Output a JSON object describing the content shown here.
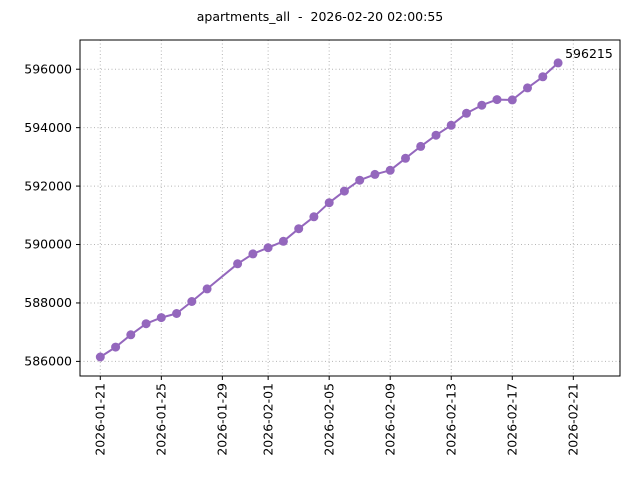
{
  "figure": {
    "title": "apartments_all  -  2026-02-20 02:00:55",
    "background_color": "#ffffff"
  },
  "chart_data": {
    "type": "line",
    "title": "apartments_all  -  2026-02-20 02:00:55",
    "xlabel": "",
    "ylabel": "",
    "grid": "dotted",
    "grid_color": "#b5b5b5",
    "legend": "none",
    "series": [
      {
        "name": "apartments_all",
        "color": "#9467bd",
        "marker": "circle",
        "x": [
          "2026-01-21",
          "2026-01-22",
          "2026-01-23",
          "2026-01-24",
          "2026-01-25",
          "2026-01-26",
          "2026-01-27",
          "2026-01-28",
          "2026-01-30",
          "2026-01-31",
          "2026-02-01",
          "2026-02-02",
          "2026-02-03",
          "2026-02-04",
          "2026-02-05",
          "2026-02-06",
          "2026-02-07",
          "2026-02-08",
          "2026-02-09",
          "2026-02-10",
          "2026-02-11",
          "2026-02-12",
          "2026-02-13",
          "2026-02-14",
          "2026-02-15",
          "2026-02-16",
          "2026-02-17",
          "2026-02-18",
          "2026-02-19",
          "2026-02-20"
        ],
        "values": [
          586150,
          586490,
          586910,
          587290,
          587500,
          587640,
          588050,
          588480,
          589340,
          589680,
          589890,
          590110,
          590540,
          590950,
          591430,
          591830,
          592200,
          592400,
          592540,
          592950,
          593360,
          593740,
          594080,
          594490,
          594770,
          594960,
          594950,
          595360,
          595740,
          596215
        ]
      }
    ],
    "annotation": {
      "text": "596215",
      "attached_to": "last-point",
      "color": "#000000"
    },
    "x_tick_labels": [
      "2026-01-21",
      "2026-01-25",
      "2026-01-29",
      "2026-02-01",
      "2026-02-05",
      "2026-02-09",
      "2026-02-13",
      "2026-02-17",
      "2026-02-21"
    ],
    "y_tick_labels": [
      "586000",
      "588000",
      "590000",
      "592000",
      "594000",
      "596000"
    ],
    "y_ticks": [
      586000,
      588000,
      590000,
      592000,
      594000,
      596000
    ],
    "ylim": [
      585500,
      597000
    ],
    "x_tick_rotation_deg": 90,
    "xlim_day_index": [
      -1.33,
      34.06
    ],
    "x_epoch_date": "2026-01-21"
  }
}
